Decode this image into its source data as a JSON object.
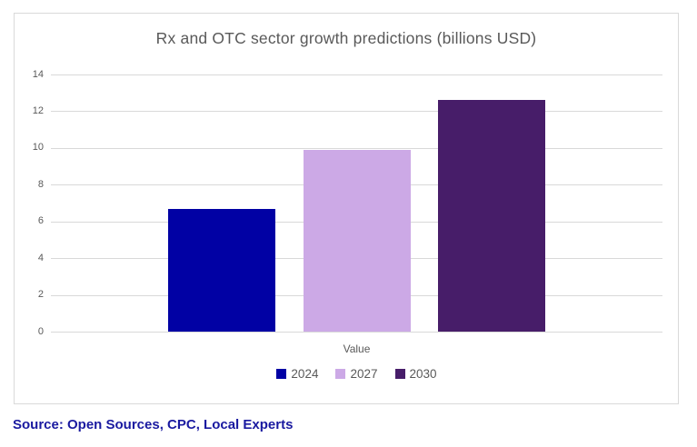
{
  "chart_data": {
    "type": "bar",
    "title": "Rx and OTC sector growth predictions (billions USD)",
    "categories": [
      "Value"
    ],
    "series": [
      {
        "name": "2024",
        "color": "#0101a4",
        "values": [
          6.7
        ]
      },
      {
        "name": "2027",
        "color": "#cca9e6",
        "values": [
          9.9
        ]
      },
      {
        "name": "2030",
        "color": "#471d69",
        "values": [
          12.6
        ]
      }
    ],
    "xlabel": "",
    "ylabel": "",
    "ylim": [
      0,
      14
    ],
    "yticks": [
      0,
      2,
      4,
      6,
      8,
      10,
      12,
      14
    ],
    "grid": true,
    "legend_position": "bottom"
  },
  "source_note": "Source: Open Sources, CPC, Local Experts",
  "colors": {
    "background": "#ffffff",
    "frame_border": "#d9d9d9",
    "gridline": "#d9d9d9",
    "text_gray": "#595959",
    "source_navy": "#1a1aa0"
  }
}
